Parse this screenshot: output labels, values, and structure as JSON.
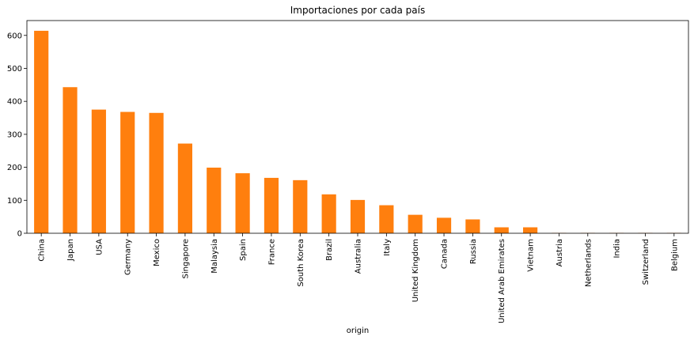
{
  "chart_data": {
    "type": "bar",
    "title": "Importaciones por cada país",
    "xlabel": "origin",
    "ylabel": "",
    "ylim": [
      0,
      645
    ],
    "yticks": [
      0,
      100,
      200,
      300,
      400,
      500,
      600
    ],
    "grid": false,
    "legend": "none",
    "bar_color": "#ff7f0e",
    "categories": [
      "China",
      "Japan",
      "USA",
      "Germany",
      "Mexico",
      "Singapore",
      "Malaysia",
      "Spain",
      "France",
      "South Korea",
      "Brazil",
      "Australia",
      "Italy",
      "United Kingdom",
      "Canada",
      "Russia",
      "United Arab Emirates",
      "Vietnam",
      "Austria",
      "Netherlands",
      "India",
      "Switzerland",
      "Belgium"
    ],
    "values": [
      614,
      443,
      375,
      368,
      365,
      272,
      199,
      182,
      168,
      161,
      118,
      101,
      85,
      56,
      47,
      42,
      18,
      18,
      1,
      1,
      1,
      1,
      1
    ]
  }
}
